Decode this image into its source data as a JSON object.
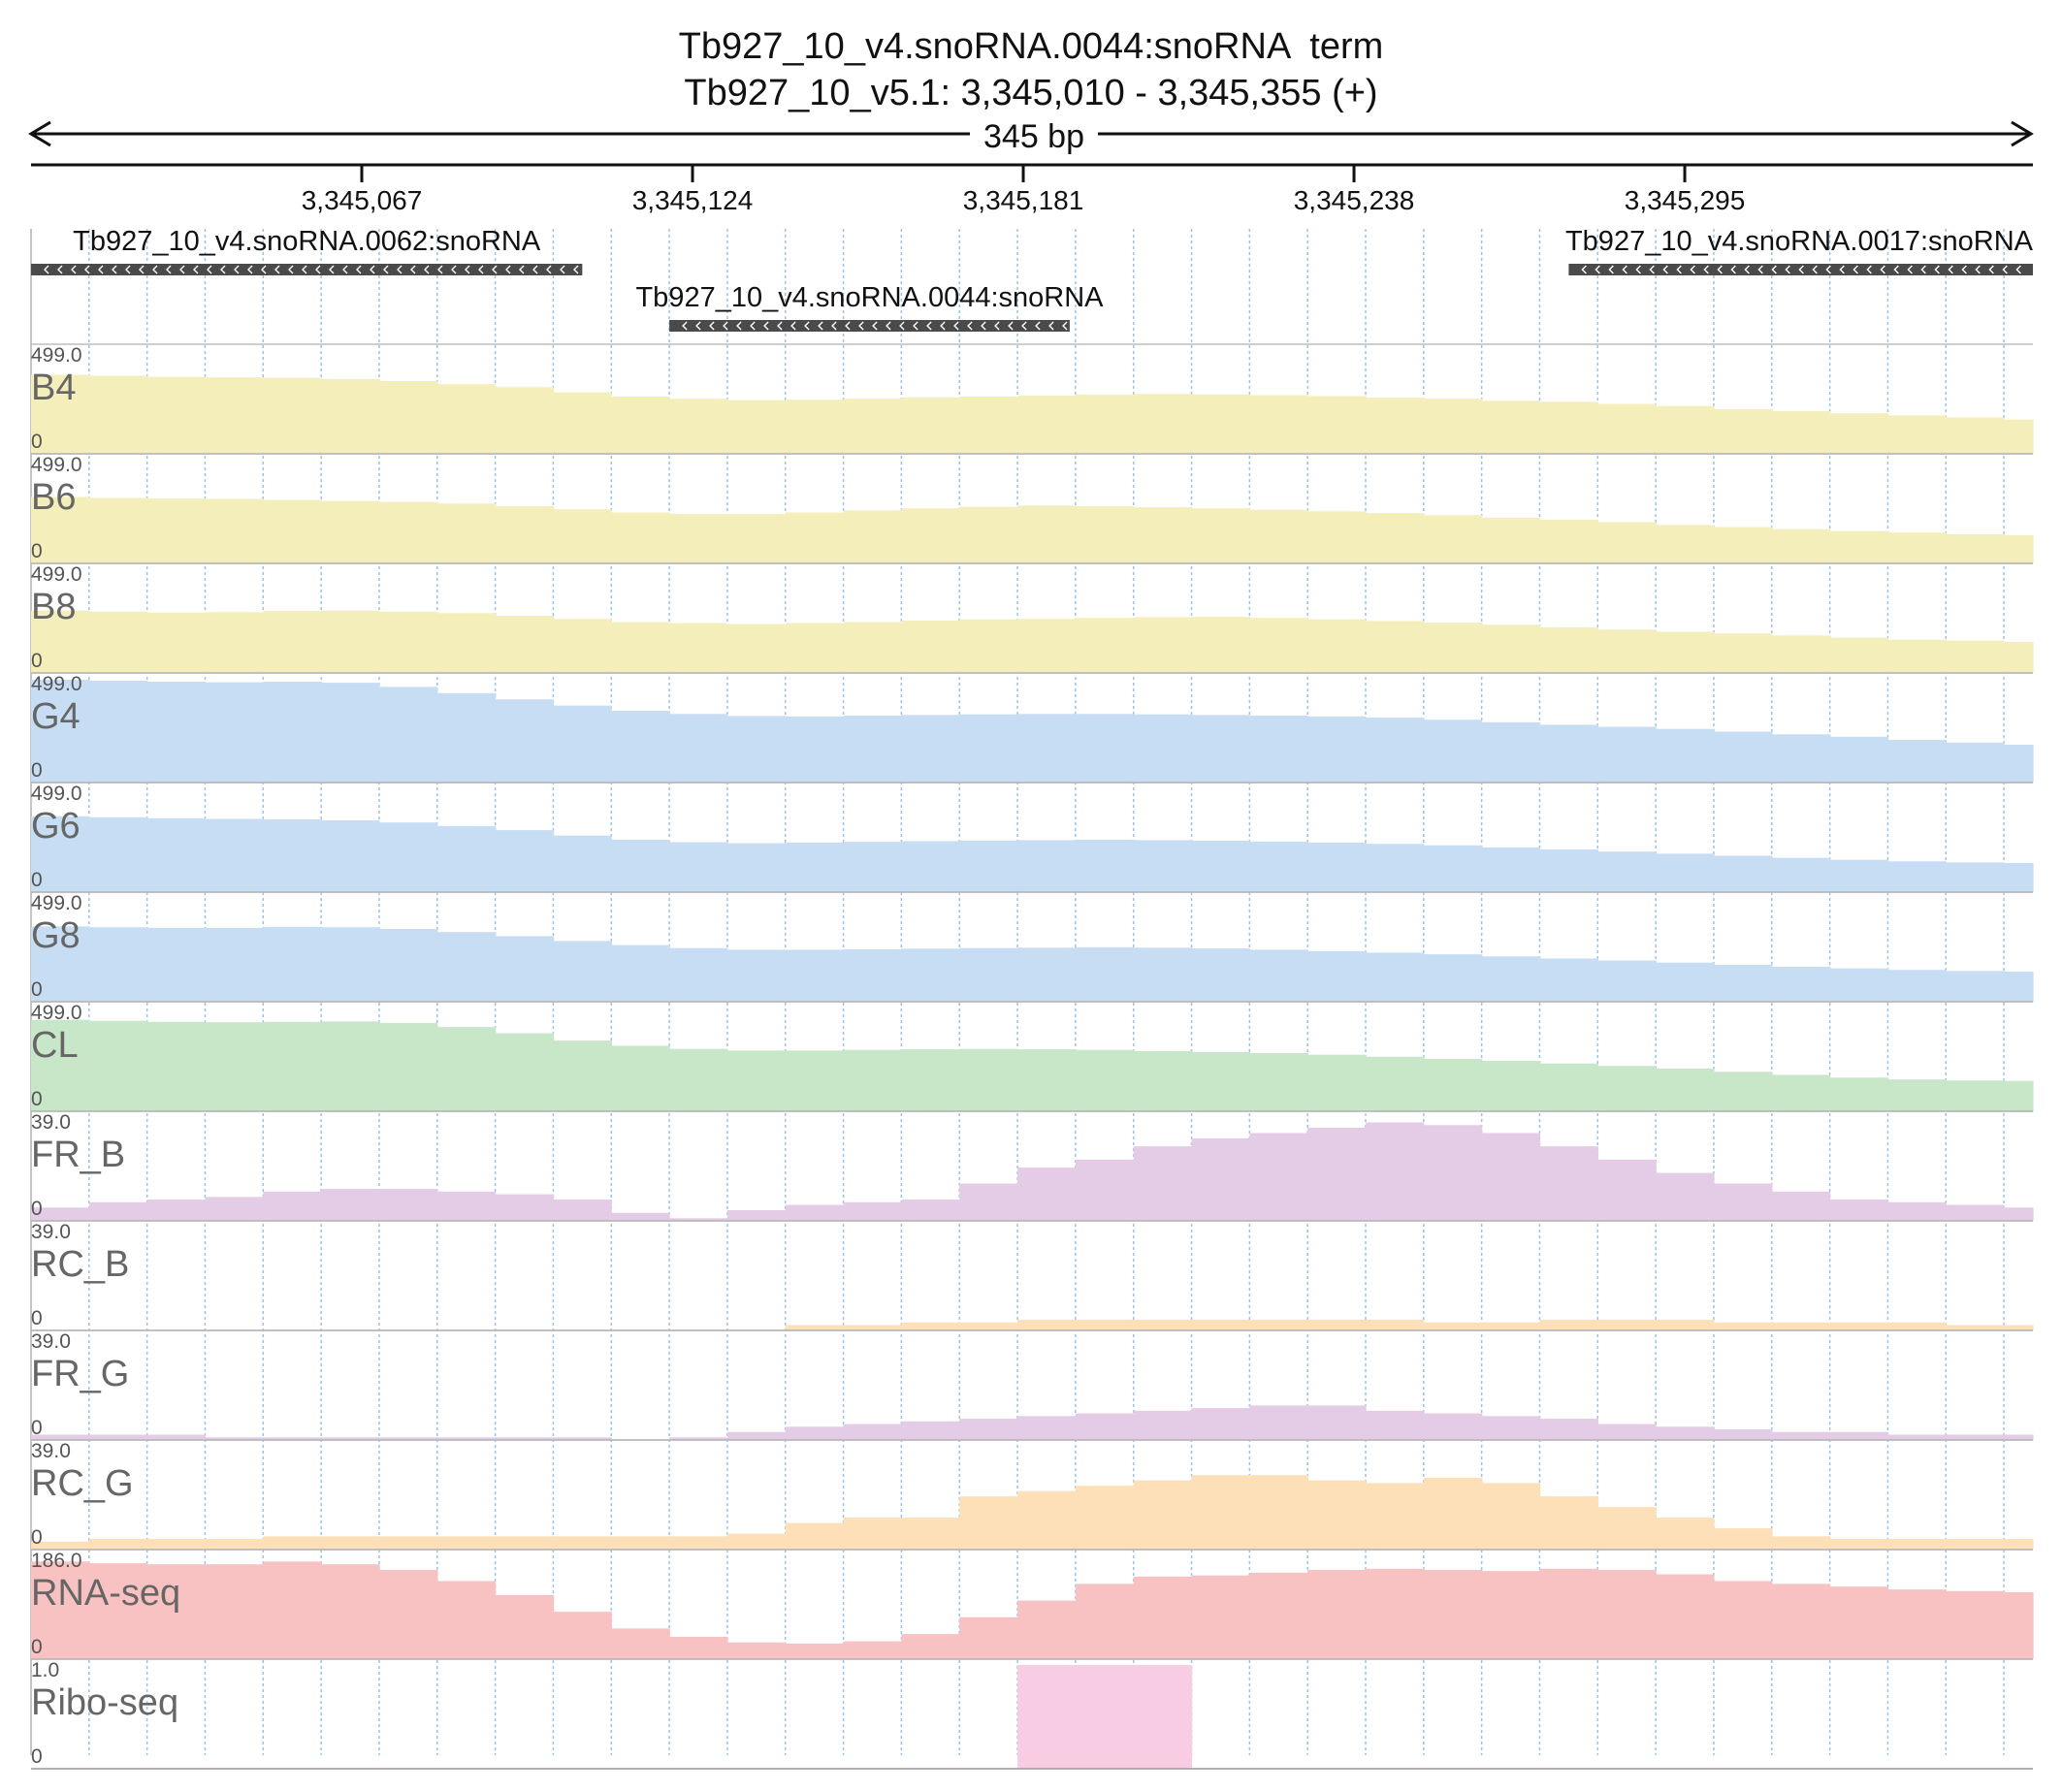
{
  "title": "Tb927_10_v4.snoRNA.0044:snoRNA  term",
  "subtitle": "Tb927_10_v5.1: 3,345,010 - 3,345,355 (+)",
  "span_label": "345 bp",
  "ruler": {
    "ticks": [
      {
        "pos": 3345067,
        "label": "3,345,067"
      },
      {
        "pos": 3345124,
        "label": "3,345,124"
      },
      {
        "pos": 3345181,
        "label": "3,345,181"
      },
      {
        "pos": 3345238,
        "label": "3,345,238"
      },
      {
        "pos": 3345295,
        "label": "3,345,295"
      }
    ]
  },
  "genes": [
    {
      "name": "Tb927_10_v4.snoRNA.0062:snoRNA",
      "start": 3345010,
      "end": 3345105,
      "strand": "-",
      "row": 0
    },
    {
      "name": "Tb927_10_v4.snoRNA.0044:snoRNA",
      "start": 3345120,
      "end": 3345189,
      "strand": "-",
      "row": 1
    },
    {
      "name": "Tb927_10_v4.snoRNA.0017:snoRNA",
      "start": 3345275,
      "end": 3345355,
      "strand": "-",
      "row": 0
    }
  ],
  "colors": {
    "yellow": "#f4eeba",
    "blue": "#c7ddf3",
    "green": "#c8e6c8",
    "purple": "#e4cce6",
    "orange": "#fde0b8",
    "red": "#f9c2c2",
    "pink": "#f8cce2",
    "gene": "#4a4a4a"
  },
  "chart_data": {
    "type": "bar",
    "region": {
      "start": 3345010,
      "end": 3345355
    },
    "x_positions": [
      3345010,
      3345020,
      3345030,
      3345040,
      3345050,
      3345060,
      3345070,
      3345080,
      3345090,
      3345100,
      3345110,
      3345120,
      3345130,
      3345140,
      3345150,
      3345160,
      3345170,
      3345180,
      3345190,
      3345200,
      3345210,
      3345220,
      3345230,
      3345240,
      3345250,
      3345260,
      3345270,
      3345280,
      3345290,
      3345300,
      3345310,
      3345320,
      3345330,
      3345340,
      3345350,
      3345355
    ],
    "tracks": [
      {
        "name": "B4",
        "max": "499.0",
        "min": "0",
        "ylim": [
          0,
          499
        ],
        "color": "yellow",
        "values": [
          380,
          375,
          370,
          368,
          365,
          360,
          350,
          335,
          320,
          295,
          275,
          265,
          258,
          260,
          265,
          272,
          275,
          280,
          285,
          288,
          286,
          282,
          278,
          270,
          265,
          255,
          250,
          240,
          230,
          215,
          205,
          195,
          185,
          175,
          165,
          160
        ]
      },
      {
        "name": "B6",
        "max": "499.0",
        "min": "0",
        "ylim": [
          0,
          499
        ],
        "color": "yellow",
        "values": [
          320,
          315,
          312,
          310,
          305,
          300,
          295,
          288,
          275,
          260,
          245,
          238,
          238,
          245,
          255,
          265,
          272,
          278,
          275,
          270,
          265,
          258,
          250,
          242,
          232,
          220,
          210,
          198,
          185,
          175,
          165,
          155,
          148,
          140,
          135,
          130
        ]
      },
      {
        "name": "B8",
        "max": "499.0",
        "min": "0",
        "ylim": [
          0,
          499
        ],
        "color": "yellow",
        "values": [
          300,
          295,
          290,
          292,
          298,
          300,
          295,
          288,
          275,
          260,
          245,
          240,
          235,
          240,
          245,
          252,
          258,
          260,
          265,
          268,
          270,
          265,
          258,
          250,
          242,
          232,
          220,
          208,
          198,
          190,
          180,
          170,
          160,
          155,
          150,
          150
        ]
      },
      {
        "name": "G4",
        "max": "499.0",
        "min": "0",
        "ylim": [
          0,
          499
        ],
        "color": "blue",
        "values": [
          495,
          490,
          485,
          482,
          485,
          480,
          460,
          430,
          400,
          370,
          345,
          330,
          320,
          318,
          322,
          325,
          328,
          330,
          330,
          328,
          325,
          322,
          318,
          312,
          302,
          290,
          278,
          268,
          258,
          245,
          232,
          220,
          205,
          192,
          182,
          180
        ]
      },
      {
        "name": "G6",
        "max": "499.0",
        "min": "0",
        "ylim": [
          0,
          499
        ],
        "color": "blue",
        "values": [
          365,
          360,
          355,
          352,
          350,
          345,
          335,
          318,
          298,
          272,
          252,
          240,
          235,
          238,
          242,
          245,
          248,
          250,
          252,
          250,
          247,
          243,
          238,
          232,
          225,
          215,
          205,
          195,
          185,
          175,
          165,
          155,
          148,
          143,
          140,
          138
        ]
      },
      {
        "name": "G8",
        "max": "499.0",
        "min": "0",
        "ylim": [
          0,
          499
        ],
        "color": "blue",
        "values": [
          362,
          358,
          355,
          355,
          360,
          358,
          350,
          335,
          315,
          292,
          272,
          258,
          250,
          250,
          252,
          255,
          258,
          260,
          262,
          260,
          256,
          250,
          243,
          236,
          228,
          218,
          208,
          198,
          188,
          178,
          168,
          160,
          153,
          148,
          145,
          143
        ]
      },
      {
        "name": "CL",
        "max": "499.0",
        "min": "0",
        "ylim": [
          0,
          499
        ],
        "color": "green",
        "values": [
          440,
          435,
          430,
          428,
          430,
          432,
          425,
          405,
          375,
          340,
          315,
          300,
          292,
          292,
          295,
          298,
          300,
          298,
          295,
          290,
          285,
          280,
          272,
          262,
          252,
          242,
          230,
          218,
          205,
          190,
          175,
          162,
          153,
          148,
          146,
          145
        ]
      },
      {
        "name": "FR_B",
        "max": "39.0",
        "min": "0",
        "ylim": [
          0,
          39
        ],
        "color": "purple",
        "values": [
          5,
          7,
          8,
          9,
          11,
          12,
          12,
          11,
          10,
          8,
          3,
          1,
          4,
          6,
          7,
          8,
          14,
          20,
          23,
          28,
          31,
          33,
          35,
          37,
          36,
          33,
          28,
          23,
          18,
          14,
          11,
          8,
          7,
          6,
          5,
          5
        ]
      },
      {
        "name": "RC_B",
        "max": "39.0",
        "min": "0",
        "ylim": [
          0,
          39
        ],
        "color": "orange",
        "values": [
          0,
          0,
          0,
          0,
          0,
          0,
          0,
          0,
          0,
          0,
          0,
          0,
          0,
          2,
          2,
          3,
          3,
          4,
          4,
          4,
          4,
          4,
          4,
          4,
          3,
          3,
          4,
          4,
          4,
          3,
          3,
          3,
          3,
          2,
          2,
          2
        ]
      },
      {
        "name": "FR_G",
        "max": "39.0",
        "min": "0",
        "ylim": [
          0,
          39
        ],
        "color": "purple",
        "values": [
          2,
          2,
          2,
          1,
          1,
          1,
          1,
          1,
          1,
          1,
          0,
          1,
          3,
          5,
          6,
          7,
          8,
          9,
          10,
          11,
          12,
          13,
          13,
          11,
          10,
          9,
          8,
          6,
          5,
          4,
          3,
          3,
          2,
          2,
          2,
          4
        ]
      },
      {
        "name": "RC_G",
        "max": "39.0",
        "min": "0",
        "ylim": [
          0,
          39
        ],
        "color": "orange",
        "values": [
          3,
          4,
          4,
          4,
          5,
          5,
          5,
          5,
          5,
          5,
          5,
          5,
          6,
          10,
          12,
          12,
          20,
          22,
          24,
          26,
          28,
          28,
          26,
          25,
          27,
          25,
          20,
          16,
          12,
          8,
          5,
          4,
          4,
          4,
          4,
          4
        ]
      },
      {
        "name": "RNA-seq",
        "max": "186.0",
        "min": "0",
        "ylim": [
          0,
          186
        ],
        "color": "red",
        "values": [
          175,
          172,
          170,
          170,
          175,
          170,
          160,
          140,
          115,
          85,
          55,
          40,
          30,
          28,
          32,
          45,
          75,
          105,
          135,
          148,
          150,
          155,
          160,
          162,
          160,
          158,
          162,
          160,
          152,
          140,
          135,
          130,
          125,
          122,
          120,
          118
        ]
      },
      {
        "name": "Ribo-seq",
        "max": "1.0",
        "min": "0",
        "ylim": [
          0,
          1
        ],
        "color": "pink",
        "values": [
          0,
          0,
          0,
          0,
          0,
          0,
          0,
          0,
          0,
          0,
          0,
          0,
          0,
          0,
          0,
          0,
          0,
          1,
          1,
          1,
          0,
          0,
          0,
          0,
          0,
          0,
          0,
          0,
          0,
          0,
          0,
          0,
          0,
          0,
          0,
          1
        ]
      }
    ]
  }
}
